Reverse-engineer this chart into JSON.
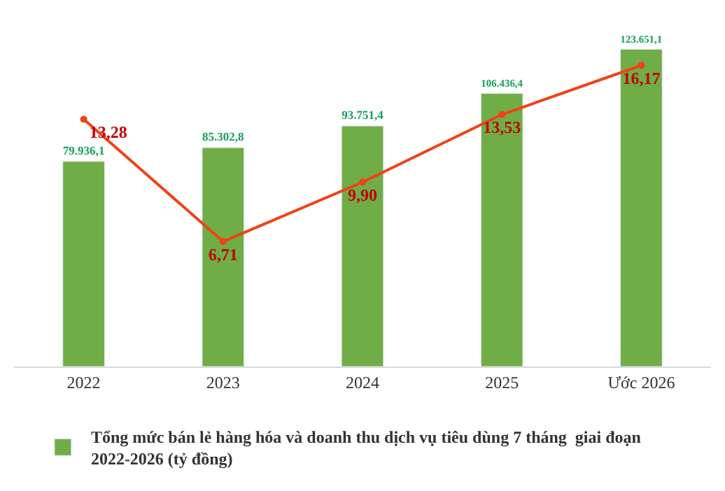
{
  "chart_data": {
    "type": "bar",
    "categories": [
      "2022",
      "2023",
      "2024",
      "2025",
      "Ước 2026"
    ],
    "series": [
      {
        "name": "Tổng mức bán lẻ hàng hóa và doanh thu dịch vụ tiêu dùng 7 tháng  giai đoạn 2022-2026 (tỷ đồng)",
        "color": "#70ad47",
        "values": [
          79936.1,
          85302.8,
          93751.4,
          106436.4,
          123651.1
        ],
        "value_labels": [
          "79.936,1",
          "85.302,8",
          "93.751,4",
          "106.436,4",
          "123.651,1"
        ]
      },
      {
        "type": "line",
        "axis": "y2",
        "color": "#ee4318",
        "marker": "circle",
        "values": [
          13.28,
          6.71,
          9.9,
          13.53,
          16.17
        ],
        "value_labels": [
          "13,28",
          "6,71",
          "9,90",
          "13,53",
          "16,17"
        ]
      }
    ],
    "tick_labels": "x",
    "legend": "bottom"
  }
}
